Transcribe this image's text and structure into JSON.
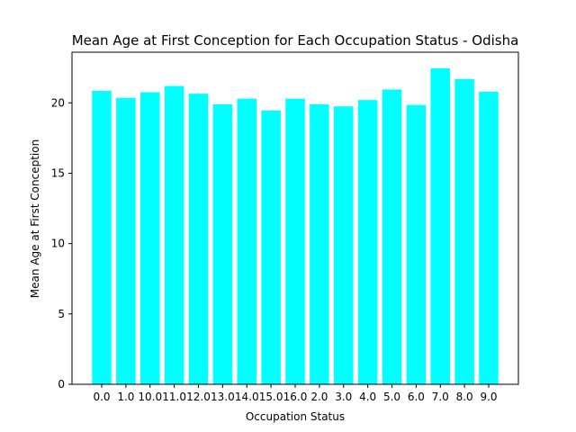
{
  "chart_data": {
    "type": "bar",
    "title": "Mean Age at First Conception for Each Occupation Status - Odisha",
    "xlabel": "Occupation Status",
    "ylabel": "Mean Age at First Conception",
    "categories": [
      "0.0",
      "1.0",
      "10.0",
      "11.0",
      "12.0",
      "13.0",
      "14.0",
      "15.0",
      "16.0",
      "2.0",
      "3.0",
      "4.0",
      "5.0",
      "6.0",
      "7.0",
      "8.0",
      "9.0"
    ],
    "values": [
      20.85,
      20.35,
      20.75,
      21.2,
      20.65,
      19.9,
      20.3,
      19.45,
      20.3,
      19.9,
      19.75,
      20.2,
      20.95,
      19.85,
      22.45,
      21.7,
      20.8
    ],
    "ylim": [
      0,
      23.6
    ],
    "yticks": [
      0,
      5,
      10,
      15,
      20
    ],
    "bar_color": "#00ffff",
    "grid": false
  }
}
